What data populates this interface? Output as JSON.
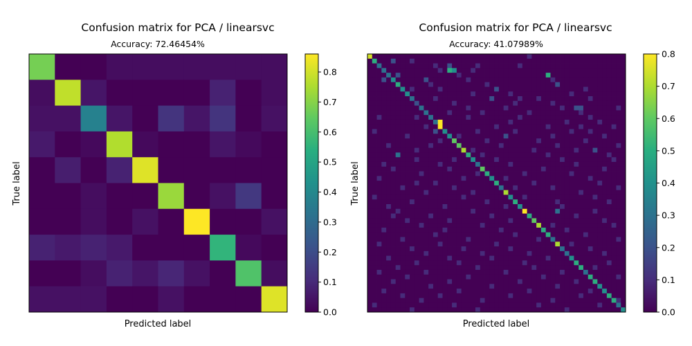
{
  "chart_data": [
    {
      "type": "heatmap",
      "title": "Confusion matrix for PCA / linearsvc",
      "subtitle": "Accuracy: 72.46454%",
      "xlabel": "Predicted label",
      "ylabel": "True label",
      "n_classes": 10,
      "colormap": "viridis",
      "vmin": 0.0,
      "vmax": 0.86,
      "colorbar_ticks": [
        "0.0",
        "0.1",
        "0.2",
        "0.3",
        "0.4",
        "0.5",
        "0.6",
        "0.7",
        "0.8"
      ],
      "matrix": [
        [
          0.68,
          0.0,
          0.0,
          0.03,
          0.03,
          0.03,
          0.03,
          0.03,
          0.03,
          0.03
        ],
        [
          0.03,
          0.78,
          0.05,
          0.0,
          0.0,
          0.0,
          0.0,
          0.08,
          0.0,
          0.03
        ],
        [
          0.04,
          0.04,
          0.38,
          0.05,
          0.0,
          0.13,
          0.05,
          0.13,
          0.0,
          0.04
        ],
        [
          0.06,
          0.0,
          0.02,
          0.76,
          0.02,
          0.0,
          0.0,
          0.05,
          0.02,
          0.0
        ],
        [
          0.0,
          0.07,
          0.0,
          0.08,
          0.82,
          0.0,
          0.0,
          0.0,
          0.0,
          0.0
        ],
        [
          0.0,
          0.0,
          0.03,
          0.0,
          0.0,
          0.73,
          0.0,
          0.04,
          0.14,
          0.0
        ],
        [
          0.0,
          0.0,
          0.03,
          0.0,
          0.04,
          0.0,
          0.86,
          0.0,
          0.0,
          0.04
        ],
        [
          0.08,
          0.06,
          0.08,
          0.06,
          0.0,
          0.0,
          0.0,
          0.56,
          0.02,
          0.0
        ],
        [
          0.0,
          0.0,
          0.03,
          0.08,
          0.05,
          0.09,
          0.04,
          0.0,
          0.62,
          0.03
        ],
        [
          0.04,
          0.04,
          0.04,
          0.0,
          0.0,
          0.04,
          0.0,
          0.0,
          0.0,
          0.82
        ]
      ]
    },
    {
      "type": "heatmap",
      "title": "Confusion matrix for PCA / linearsvc",
      "subtitle": "Accuracy: 41.07989%",
      "xlabel": "Predicted label",
      "ylabel": "True label",
      "n_classes": 55,
      "colormap": "viridis",
      "vmin": 0.0,
      "vmax": 0.8,
      "colorbar_ticks": [
        "0.0",
        "0.1",
        "0.2",
        "0.3",
        "0.4",
        "0.5",
        "0.6",
        "0.7",
        "0.8"
      ],
      "diagonal": [
        0.75,
        0.5,
        0.3,
        0.3,
        0.3,
        0.4,
        0.5,
        0.4,
        0.4,
        0.3,
        0.2,
        0.3,
        0.3,
        0.3,
        0.3,
        0.8,
        0.4,
        0.4,
        0.6,
        0.6,
        0.7,
        0.5,
        0.4,
        0.3,
        0.6,
        0.5,
        0.4,
        0.5,
        0.3,
        0.7,
        0.4,
        0.5,
        0.4,
        0.8,
        0.5,
        0.6,
        0.7,
        0.5,
        0.5,
        0.3,
        0.7,
        0.3,
        0.3,
        0.4,
        0.5,
        0.5,
        0.3,
        0.5,
        0.5,
        0.4,
        0.4,
        0.5,
        0.5,
        0.3,
        0.4
      ],
      "offdiag": [
        [
          0,
          34,
          0.1
        ],
        [
          1,
          9,
          0.1
        ],
        [
          1,
          5,
          0.2
        ],
        [
          2,
          14,
          0.1
        ],
        [
          2,
          17,
          0.2
        ],
        [
          2,
          23,
          0.1
        ],
        [
          2,
          32,
          0.1
        ],
        [
          3,
          17,
          0.5
        ],
        [
          3,
          22,
          0.1
        ],
        [
          3,
          15,
          0.1
        ],
        [
          3,
          18,
          0.4
        ],
        [
          4,
          6,
          0.2
        ],
        [
          4,
          19,
          0.1
        ],
        [
          4,
          38,
          0.5
        ],
        [
          5,
          3,
          0.2
        ],
        [
          5,
          12,
          0.2
        ],
        [
          5,
          21,
          0.1
        ],
        [
          5,
          39,
          0.1
        ],
        [
          6,
          13,
          0.1
        ],
        [
          6,
          25,
          0.1
        ],
        [
          6,
          40,
          0.2
        ],
        [
          7,
          9,
          0.1
        ],
        [
          7,
          15,
          0.1
        ],
        [
          7,
          27,
          0.2
        ],
        [
          7,
          46,
          0.1
        ],
        [
          8,
          22,
          0.1
        ],
        [
          8,
          30,
          0.1
        ],
        [
          8,
          43,
          0.1
        ],
        [
          9,
          14,
          0.1
        ],
        [
          9,
          26,
          0.2
        ],
        [
          9,
          32,
          0.1
        ],
        [
          9,
          36,
          0.1
        ],
        [
          9,
          47,
          0.1
        ],
        [
          10,
          18,
          0.1
        ],
        [
          10,
          31,
          0.1
        ],
        [
          10,
          39,
          0.1
        ],
        [
          11,
          21,
          0.1
        ],
        [
          11,
          29,
          0.1
        ],
        [
          11,
          41,
          0.1
        ],
        [
          11,
          44,
          0.2
        ],
        [
          11,
          45,
          0.2
        ],
        [
          11,
          53,
          0.1
        ],
        [
          12,
          17,
          0.1
        ],
        [
          12,
          24,
          0.1
        ],
        [
          12,
          34,
          0.1
        ],
        [
          12,
          45,
          0.1
        ],
        [
          13,
          2,
          0.1
        ],
        [
          13,
          10,
          0.1
        ],
        [
          13,
          21,
          0.1
        ],
        [
          13,
          32,
          0.1
        ],
        [
          13,
          47,
          0.1
        ],
        [
          14,
          15,
          0.8
        ],
        [
          14,
          30,
          0.1
        ],
        [
          14,
          42,
          0.1
        ],
        [
          14,
          49,
          0.1
        ],
        [
          15,
          12,
          0.1
        ],
        [
          15,
          27,
          0.1
        ],
        [
          15,
          38,
          0.1
        ],
        [
          15,
          45,
          0.1
        ],
        [
          15,
          52,
          0.1
        ],
        [
          16,
          1,
          0.1
        ],
        [
          16,
          14,
          0.2
        ],
        [
          16,
          23,
          0.1
        ],
        [
          16,
          31,
          0.1
        ],
        [
          16,
          43,
          0.1
        ],
        [
          16,
          47,
          0.1
        ],
        [
          17,
          8,
          0.1
        ],
        [
          17,
          19,
          0.1
        ],
        [
          17,
          29,
          0.2
        ],
        [
          17,
          39,
          0.1
        ],
        [
          17,
          50,
          0.1
        ],
        [
          18,
          15,
          0.1
        ],
        [
          18,
          25,
          0.1
        ],
        [
          18,
          36,
          0.1
        ],
        [
          18,
          46,
          0.1
        ],
        [
          19,
          4,
          0.1
        ],
        [
          19,
          13,
          0.1
        ],
        [
          19,
          28,
          0.1
        ],
        [
          19,
          40,
          0.1
        ],
        [
          19,
          53,
          0.1
        ],
        [
          20,
          10,
          0.1
        ],
        [
          20,
          22,
          0.1
        ],
        [
          20,
          35,
          0.1
        ],
        [
          20,
          44,
          0.1
        ],
        [
          20,
          48,
          0.2
        ],
        [
          21,
          6,
          0.3
        ],
        [
          21,
          24,
          0.1
        ],
        [
          21,
          38,
          0.1
        ],
        [
          21,
          51,
          0.1
        ],
        [
          22,
          10,
          0.1
        ],
        [
          22,
          18,
          0.1
        ],
        [
          22,
          27,
          0.1
        ],
        [
          22,
          41,
          0.1
        ],
        [
          22,
          52,
          0.1
        ],
        [
          23,
          3,
          0.1
        ],
        [
          23,
          15,
          0.1
        ],
        [
          23,
          30,
          0.1
        ],
        [
          23,
          44,
          0.1
        ],
        [
          24,
          5,
          0.1
        ],
        [
          24,
          17,
          0.1
        ],
        [
          24,
          37,
          0.1
        ],
        [
          24,
          50,
          0.1
        ],
        [
          25,
          11,
          0.1
        ],
        [
          25,
          23,
          0.1
        ],
        [
          25,
          33,
          0.1
        ],
        [
          25,
          43,
          0.1
        ],
        [
          26,
          2,
          0.1
        ],
        [
          26,
          20,
          0.1
        ],
        [
          26,
          29,
          0.1
        ],
        [
          26,
          47,
          0.1
        ],
        [
          27,
          10,
          0.1
        ],
        [
          27,
          14,
          0.1
        ],
        [
          27,
          35,
          0.1
        ],
        [
          27,
          49,
          0.1
        ],
        [
          28,
          7,
          0.1
        ],
        [
          28,
          18,
          0.1
        ],
        [
          28,
          31,
          0.1
        ],
        [
          28,
          39,
          0.1
        ],
        [
          28,
          53,
          0.1
        ],
        [
          29,
          12,
          0.1
        ],
        [
          29,
          22,
          0.1
        ],
        [
          29,
          45,
          0.1
        ],
        [
          30,
          1,
          0.1
        ],
        [
          30,
          20,
          0.1
        ],
        [
          30,
          33,
          0.1
        ],
        [
          30,
          48,
          0.1
        ],
        [
          31,
          9,
          0.1
        ],
        [
          31,
          25,
          0.1
        ],
        [
          31,
          40,
          0.1
        ],
        [
          31,
          51,
          0.1
        ],
        [
          32,
          4,
          0.1
        ],
        [
          32,
          16,
          0.1
        ],
        [
          32,
          29,
          0.1
        ],
        [
          32,
          41,
          0.1
        ],
        [
          33,
          6,
          0.1
        ],
        [
          33,
          22,
          0.1
        ],
        [
          33,
          40,
          0.3
        ],
        [
          33,
          48,
          0.1
        ],
        [
          34,
          5,
          0.1
        ],
        [
          34,
          13,
          0.1
        ],
        [
          34,
          26,
          0.1
        ],
        [
          34,
          44,
          0.1
        ],
        [
          35,
          8,
          0.1
        ],
        [
          35,
          17,
          0.1
        ],
        [
          35,
          30,
          0.1
        ],
        [
          35,
          50,
          0.1
        ],
        [
          36,
          11,
          0.1
        ],
        [
          36,
          24,
          0.1
        ],
        [
          36,
          39,
          0.1
        ],
        [
          36,
          52,
          0.1
        ],
        [
          37,
          3,
          0.1
        ],
        [
          37,
          16,
          0.1
        ],
        [
          37,
          28,
          0.1
        ],
        [
          37,
          42,
          0.1
        ],
        [
          38,
          14,
          0.1
        ],
        [
          38,
          31,
          0.1
        ],
        [
          38,
          46,
          0.1
        ],
        [
          39,
          7,
          0.1
        ],
        [
          39,
          21,
          0.1
        ],
        [
          39,
          36,
          0.1
        ],
        [
          39,
          53,
          0.1
        ],
        [
          40,
          2,
          0.1
        ],
        [
          40,
          15,
          0.1
        ],
        [
          40,
          27,
          0.1
        ],
        [
          40,
          43,
          0.1
        ],
        [
          41,
          9,
          0.1
        ],
        [
          41,
          20,
          0.1
        ],
        [
          41,
          30,
          0.1
        ],
        [
          41,
          47,
          0.1
        ],
        [
          42,
          12,
          0.1
        ],
        [
          42,
          24,
          0.1
        ],
        [
          42,
          34,
          0.1
        ],
        [
          42,
          50,
          0.1
        ],
        [
          43,
          4,
          0.1
        ],
        [
          43,
          17,
          0.1
        ],
        [
          43,
          26,
          0.1
        ],
        [
          43,
          38,
          0.1
        ],
        [
          44,
          10,
          0.1
        ],
        [
          44,
          19,
          0.1
        ],
        [
          44,
          33,
          0.1
        ],
        [
          44,
          51,
          0.1
        ],
        [
          45,
          6,
          0.1
        ],
        [
          45,
          23,
          0.1
        ],
        [
          45,
          35,
          0.1
        ],
        [
          45,
          48,
          0.1
        ],
        [
          46,
          2,
          0.1
        ],
        [
          46,
          12,
          0.1
        ],
        [
          46,
          29,
          0.1
        ],
        [
          46,
          41,
          0.1
        ],
        [
          47,
          8,
          0.1
        ],
        [
          47,
          21,
          0.1
        ],
        [
          47,
          37,
          0.1
        ],
        [
          47,
          53,
          0.1
        ],
        [
          48,
          5,
          0.1
        ],
        [
          48,
          17,
          0.1
        ],
        [
          48,
          32,
          0.1
        ],
        [
          48,
          44,
          0.1
        ],
        [
          49,
          13,
          0.1
        ],
        [
          49,
          26,
          0.1
        ],
        [
          49,
          40,
          0.1
        ],
        [
          50,
          3,
          0.1
        ],
        [
          50,
          19,
          0.1
        ],
        [
          50,
          34,
          0.1
        ],
        [
          50,
          47,
          0.1
        ],
        [
          51,
          7,
          0.1
        ],
        [
          51,
          15,
          0.1
        ],
        [
          51,
          30,
          0.1
        ],
        [
          51,
          45,
          0.1
        ],
        [
          52,
          11,
          0.1
        ],
        [
          52,
          24,
          0.1
        ],
        [
          52,
          39,
          0.1
        ],
        [
          52,
          53,
          0.1
        ],
        [
          53,
          1,
          0.1
        ],
        [
          53,
          18,
          0.1
        ],
        [
          53,
          36,
          0.1
        ],
        [
          53,
          49,
          0.1
        ],
        [
          54,
          9,
          0.1
        ],
        [
          54,
          23,
          0.1
        ],
        [
          54,
          42,
          0.1
        ]
      ]
    }
  ]
}
